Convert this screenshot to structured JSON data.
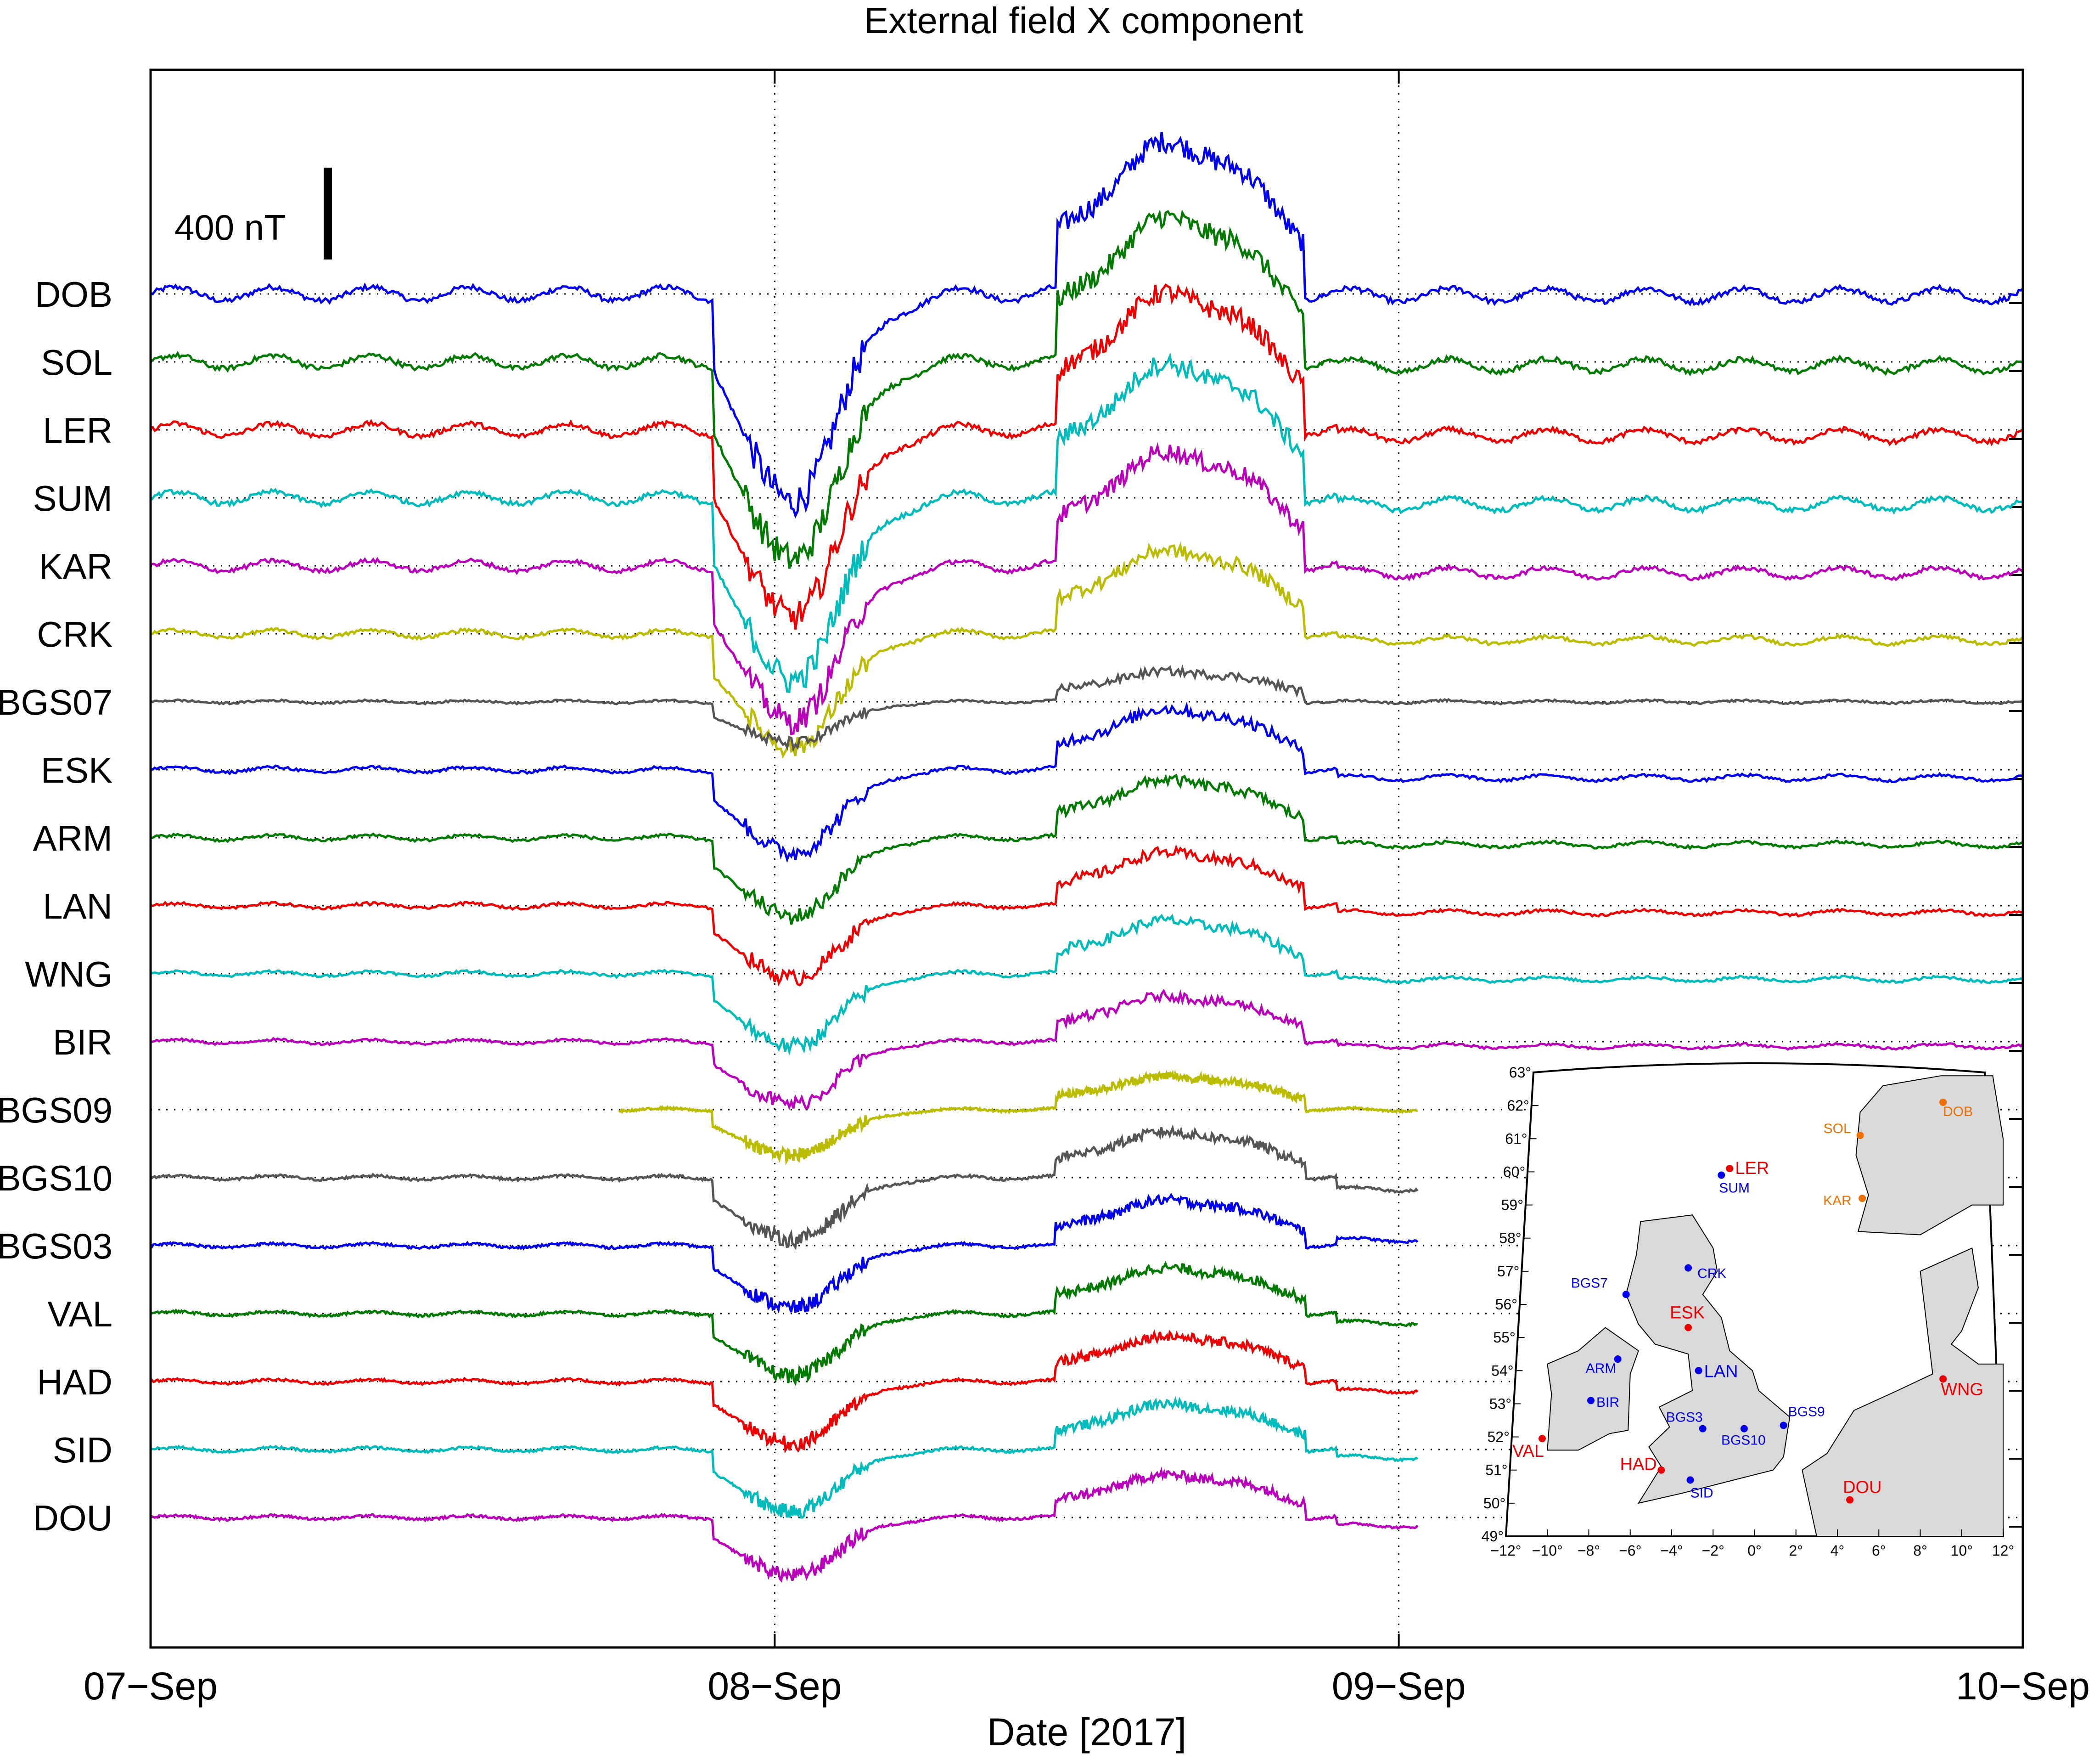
{
  "chart_data": {
    "type": "line",
    "title": "External field X component",
    "xlabel": "Date [2017]",
    "ylabel": "",
    "x_ticks": [
      "07−Sep",
      "08−Sep",
      "09−Sep",
      "10−Sep"
    ],
    "x_range_days": [
      0,
      3
    ],
    "grid": "vertical dotted lines at day boundaries; dotted baseline per station",
    "scale_bar": {
      "label": "400 nT",
      "value_nT": 400
    },
    "vertical_offset_nT": 150,
    "stations": [
      {
        "name": "DOB",
        "color": "#0000ee",
        "start": 0,
        "end": 3,
        "amp": 1.0,
        "post": -5
      },
      {
        "name": "SOL",
        "color": "#007a00",
        "start": 0,
        "end": 3,
        "amp": 0.95,
        "post": -15
      },
      {
        "name": "LER",
        "color": "#ee0000",
        "start": 0,
        "end": 3,
        "amp": 0.9,
        "post": -25
      },
      {
        "name": "SUM",
        "color": "#00bbbb",
        "start": 0,
        "end": 3,
        "amp": 0.88,
        "post": -28
      },
      {
        "name": "KAR",
        "color": "#bb00bb",
        "start": 0,
        "end": 3,
        "amp": 0.75,
        "post": -30
      },
      {
        "name": "CRK",
        "color": "#bbbb00",
        "start": 0,
        "end": 3,
        "amp": 0.55,
        "post": -28
      },
      {
        "name": "BGS07",
        "color": "#555555",
        "start": 0,
        "end": 3,
        "amp": 0.2,
        "post": 0
      },
      {
        "name": "ESK",
        "color": "#0000ee",
        "start": 0,
        "end": 3,
        "amp": 0.4,
        "post": -35
      },
      {
        "name": "ARM",
        "color": "#007a00",
        "start": 0,
        "end": 3,
        "amp": 0.38,
        "post": -30
      },
      {
        "name": "LAN",
        "color": "#ee0000",
        "start": 0,
        "end": 3,
        "amp": 0.35,
        "post": -30
      },
      {
        "name": "WNG",
        "color": "#00bbbb",
        "start": 0,
        "end": 3,
        "amp": 0.35,
        "post": -25
      },
      {
        "name": "BIR",
        "color": "#bb00bb",
        "start": 0,
        "end": 3,
        "amp": 0.3,
        "post": -20
      },
      {
        "name": "BGS09",
        "color": "#bbbb00",
        "start": 0.75,
        "end": 2.03,
        "amp": 0.22,
        "post": 0
      },
      {
        "name": "BGS10",
        "color": "#555555",
        "start": 0,
        "end": 2.03,
        "amp": 0.3,
        "post": -50
      },
      {
        "name": "BGS03",
        "color": "#0000ee",
        "start": 0,
        "end": 2.03,
        "amp": 0.3,
        "post": 25
      },
      {
        "name": "VAL",
        "color": "#007a00",
        "start": 0,
        "end": 2.03,
        "amp": 0.3,
        "post": -40
      },
      {
        "name": "HAD",
        "color": "#ee0000",
        "start": 0,
        "end": 2.03,
        "amp": 0.3,
        "post": -40
      },
      {
        "name": "SID",
        "color": "#00bbbb",
        "start": 0,
        "end": 2.03,
        "amp": 0.3,
        "post": -35
      },
      {
        "name": "DOU",
        "color": "#bb00bb",
        "start": 0,
        "end": 2.03,
        "amp": 0.28,
        "post": -35
      }
    ]
  },
  "map": {
    "lat_ticks": [
      "63°",
      "62°",
      "61°",
      "60°",
      "59°",
      "58°",
      "57°",
      "56°",
      "55°",
      "54°",
      "53°",
      "52°",
      "51°",
      "50°",
      "49°"
    ],
    "lon_ticks": [
      "−12°",
      "−10°",
      "−8°",
      "−6°",
      "−4°",
      "−2°",
      "0°",
      "2°",
      "4°",
      "6°",
      "8°",
      "10°",
      "12°"
    ],
    "observatories": [
      {
        "name": "DOB",
        "lon": 9.1,
        "lat": 62.1,
        "color": "#ee7000",
        "size": "small",
        "dx": 0,
        "dy": 30
      },
      {
        "name": "SOL",
        "lon": 5.1,
        "lat": 61.1,
        "color": "#ee7000",
        "size": "small",
        "dx": -80,
        "dy": -5
      },
      {
        "name": "KAR",
        "lon": 5.2,
        "lat": 59.2,
        "color": "#ee7000",
        "size": "small",
        "dx": -85,
        "dy": 15
      },
      {
        "name": "LER",
        "lon": -1.2,
        "lat": 60.1,
        "color": "#ee0000",
        "size": "big",
        "dx": 12,
        "dy": 12
      },
      {
        "name": "SUM",
        "lon": -1.6,
        "lat": 59.9,
        "color": "#0000ee",
        "size": "small",
        "dx": -5,
        "dy": 38
      },
      {
        "name": "CRK",
        "lon": -3.2,
        "lat": 57.1,
        "color": "#0000ee",
        "size": "small",
        "dx": 20,
        "dy": 22
      },
      {
        "name": "BGS7",
        "lon": -6.2,
        "lat": 56.3,
        "color": "#0000ee",
        "size": "small",
        "dx": -120,
        "dy": -15
      },
      {
        "name": "ESK",
        "lon": -3.2,
        "lat": 55.3,
        "color": "#ee0000",
        "size": "big",
        "dx": -40,
        "dy": -20
      },
      {
        "name": "ARM",
        "lon": -6.6,
        "lat": 54.35,
        "color": "#0000ee",
        "size": "small",
        "dx": -70,
        "dy": 30
      },
      {
        "name": "LAN",
        "lon": -2.7,
        "lat": 54.0,
        "color": "#0000ee",
        "size": "big",
        "dx": 12,
        "dy": 14
      },
      {
        "name": "BIR",
        "lon": -7.9,
        "lat": 53.1,
        "color": "#0000ee",
        "size": "small",
        "dx": 12,
        "dy": 14
      },
      {
        "name": "WNG",
        "lon": 9.1,
        "lat": 53.75,
        "color": "#ee0000",
        "size": "big",
        "dx": -5,
        "dy": 35
      },
      {
        "name": "BGS3",
        "lon": -2.5,
        "lat": 52.25,
        "color": "#0000ee",
        "size": "small",
        "dx": -80,
        "dy": -15
      },
      {
        "name": "BGS10",
        "lon": -0.5,
        "lat": 52.25,
        "color": "#0000ee",
        "size": "small",
        "dx": -50,
        "dy": 35
      },
      {
        "name": "BGS9",
        "lon": 1.4,
        "lat": 52.35,
        "color": "#0000ee",
        "size": "small",
        "dx": 10,
        "dy": -20
      },
      {
        "name": "VAL",
        "lon": -10.25,
        "lat": 51.95,
        "color": "#ee0000",
        "size": "big",
        "dx": -65,
        "dy": 40
      },
      {
        "name": "HAD",
        "lon": -4.5,
        "lat": 51.0,
        "color": "#ee0000",
        "size": "big",
        "dx": -90,
        "dy": 0
      },
      {
        "name": "SID",
        "lon": -3.1,
        "lat": 50.7,
        "color": "#0000ee",
        "size": "small",
        "dx": 0,
        "dy": 38
      },
      {
        "name": "DOU",
        "lon": 4.6,
        "lat": 50.1,
        "color": "#ee0000",
        "size": "big",
        "dx": -15,
        "dy": -15
      }
    ]
  }
}
